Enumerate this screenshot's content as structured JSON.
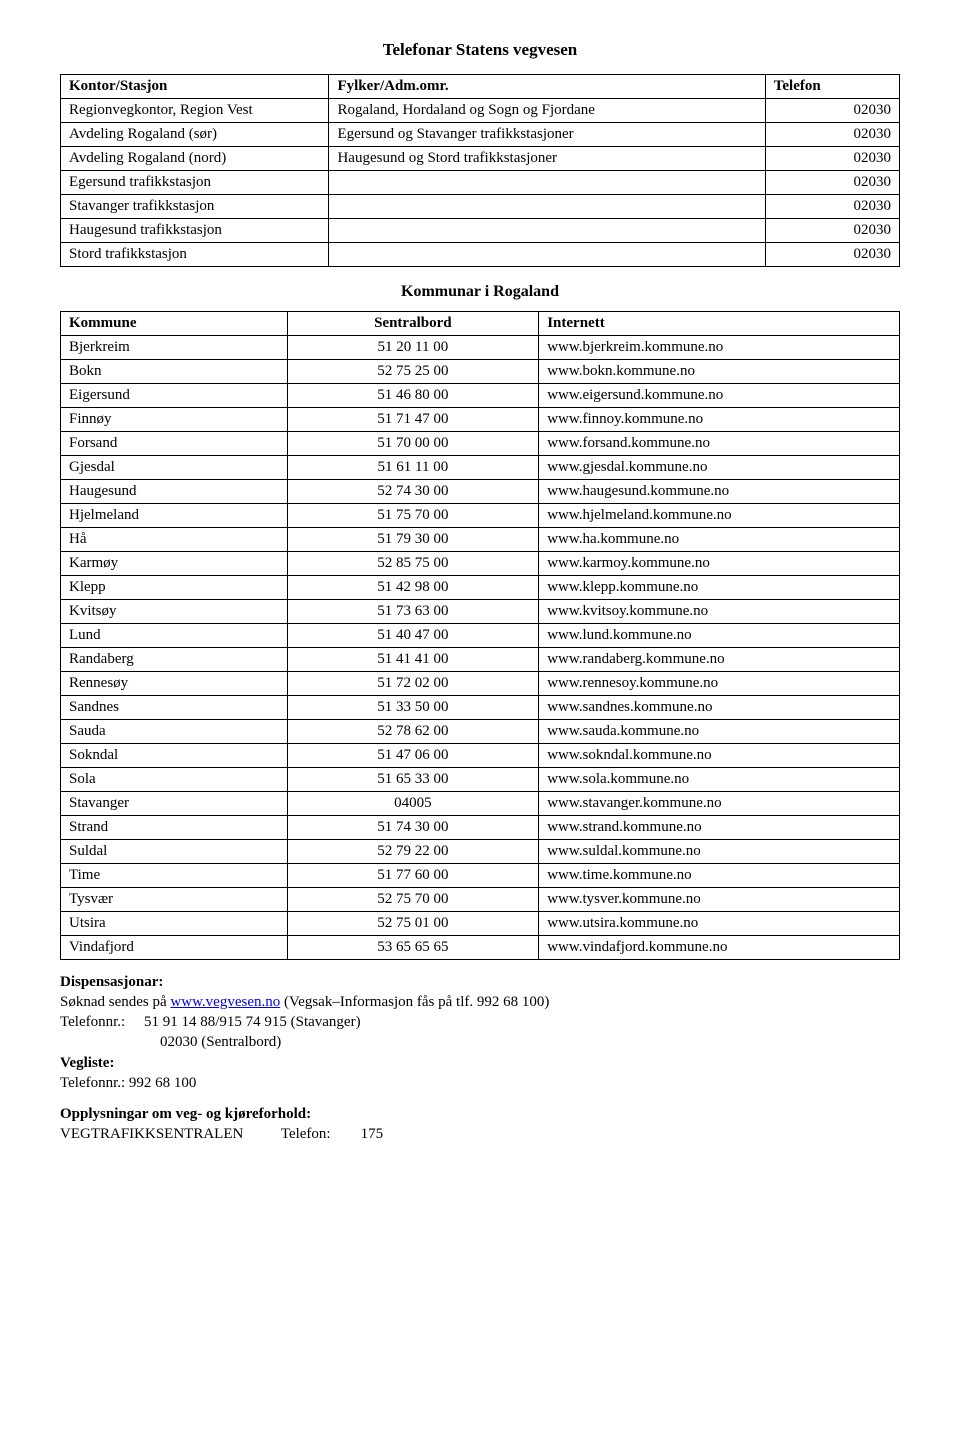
{
  "title_main": "Telefonar Statens vegvesen",
  "table1": {
    "headers": [
      "Kontor/Stasjon",
      "Fylker/Adm.omr.",
      "Telefon"
    ],
    "rows": [
      [
        "Regionvegkontor, Region Vest",
        "Rogaland, Hordaland og Sogn og Fjordane",
        "02030"
      ],
      [
        "Avdeling Rogaland (sør)",
        "Egersund og Stavanger trafikkstasjoner",
        "02030"
      ],
      [
        "Avdeling Rogaland (nord)",
        "Haugesund og Stord trafikkstasjoner",
        "02030"
      ],
      [
        "Egersund trafikkstasjon",
        "",
        "02030"
      ],
      [
        "Stavanger trafikkstasjon",
        "",
        "02030"
      ],
      [
        "Haugesund trafikkstasjon",
        "",
        "02030"
      ],
      [
        "Stord trafikkstasjon",
        "",
        "02030"
      ]
    ]
  },
  "title_sub": "Kommunar i Rogaland",
  "table2": {
    "headers": [
      "Kommune",
      "Sentralbord",
      "Internett"
    ],
    "rows": [
      [
        "Bjerkreim",
        "51 20 11 00",
        "www.bjerkreim.kommune.no"
      ],
      [
        "Bokn",
        "52 75 25 00",
        "www.bokn.kommune.no"
      ],
      [
        "Eigersund",
        "51 46 80 00",
        "www.eigersund.kommune.no"
      ],
      [
        "Finnøy",
        "51 71 47 00",
        "www.finnoy.kommune.no"
      ],
      [
        "Forsand",
        "51 70 00 00",
        "www.forsand.kommune.no"
      ],
      [
        "Gjesdal",
        "51 61 11 00",
        "www.gjesdal.kommune.no"
      ],
      [
        "Haugesund",
        "52 74 30 00",
        "www.haugesund.kommune.no"
      ],
      [
        "Hjelmeland",
        "51 75 70 00",
        "www.hjelmeland.kommune.no"
      ],
      [
        "Hå",
        "51 79 30 00",
        "www.ha.kommune.no"
      ],
      [
        "Karmøy",
        "52 85 75 00",
        "www.karmoy.kommune.no"
      ],
      [
        "Klepp",
        "51 42 98 00",
        "www.klepp.kommune.no"
      ],
      [
        "Kvitsøy",
        "51 73 63 00",
        "www.kvitsoy.kommune.no"
      ],
      [
        "Lund",
        "51 40 47 00",
        "www.lund.kommune.no"
      ],
      [
        "Randaberg",
        "51 41 41 00",
        "www.randaberg.kommune.no"
      ],
      [
        "Rennesøy",
        "51 72 02 00",
        "www.rennesoy.kommune.no"
      ],
      [
        "Sandnes",
        "51 33 50 00",
        "www.sandnes.kommune.no"
      ],
      [
        "Sauda",
        "52 78 62 00",
        "www.sauda.kommune.no"
      ],
      [
        "Sokndal",
        "51 47 06 00",
        "www.sokndal.kommune.no"
      ],
      [
        "Sola",
        "51 65 33 00",
        "www.sola.kommune.no"
      ],
      [
        "Stavanger",
        "04005",
        "www.stavanger.kommune.no"
      ],
      [
        "Strand",
        "51 74 30 00",
        "www.strand.kommune.no"
      ],
      [
        "Suldal",
        "52 79 22 00",
        "www.suldal.kommune.no"
      ],
      [
        "Time",
        "51 77 60 00",
        "www.time.kommune.no"
      ],
      [
        "Tysvær",
        "52 75 70 00",
        "www.tysver.kommune.no"
      ],
      [
        "Utsira",
        "52 75 01 00",
        "www.utsira.kommune.no"
      ],
      [
        "Vindafjord",
        "53 65 65 65",
        "www.vindafjord.kommune.no"
      ]
    ]
  },
  "disp": {
    "heading": "Dispensasjonar:",
    "line1_prefix": "Søknad sendes på ",
    "line1_link": "www.vegvesen.no",
    "line1_suffix": " (Vegsak–Informasjon fås på tlf. 992 68 100)",
    "line2_label": "Telefonnr.:",
    "line2_val1": "51 91 14 88/915 74 915 (Stavanger)",
    "line2_val2": "02030 (Sentralbord)"
  },
  "vegliste": {
    "heading": "Vegliste:",
    "line": "Telefonnr.: 992 68 100"
  },
  "opp": {
    "heading": "Opplysningar om veg- og kjøreforhold:",
    "line_label": "VEGTRAFIKKSENTRALEN",
    "line_mid": "Telefon:",
    "line_val": "175"
  }
}
